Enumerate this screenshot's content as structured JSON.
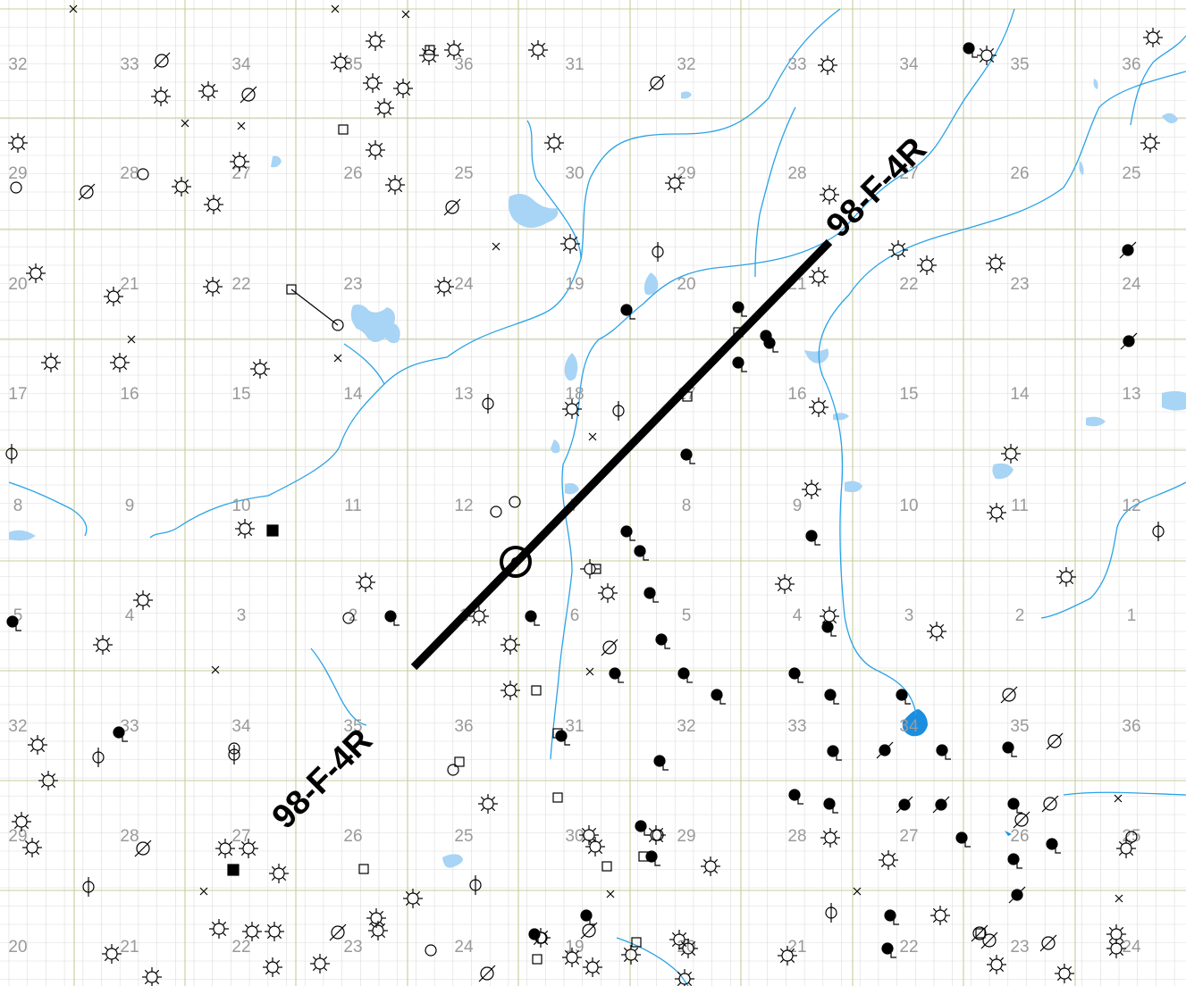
{
  "map": {
    "seismic_line_label": "98-F-4R",
    "section_labels": [
      "32",
      "33",
      "34",
      "35",
      "36",
      "31",
      "32",
      "33",
      "34",
      "35",
      "36",
      "29",
      "28",
      "27",
      "26",
      "25",
      "30",
      "29",
      "28",
      "27",
      "26",
      "25",
      "20",
      "21",
      "22",
      "23",
      "24",
      "19",
      "20",
      "21",
      "22",
      "23",
      "24",
      "17",
      "16",
      "15",
      "14",
      "13",
      "18",
      "17",
      "16",
      "15",
      "14",
      "13",
      "8",
      "9",
      "10",
      "11",
      "12",
      "7",
      "8",
      "9",
      "10",
      "11",
      "12",
      "5",
      "4",
      "3",
      "2",
      "1",
      "6",
      "5",
      "4",
      "3",
      "2",
      "1",
      "32",
      "33",
      "34",
      "35",
      "36",
      "31",
      "32",
      "33",
      "34",
      "35",
      "36",
      "29",
      "28",
      "27",
      "26",
      "25",
      "30",
      "29",
      "28",
      "27",
      "26",
      "25",
      "20",
      "21",
      "22",
      "23",
      "24",
      "19",
      "20",
      "21",
      "22",
      "23",
      "24"
    ],
    "colors": {
      "water": "#a8d4f5",
      "river": "#2aa3e6",
      "grid_major": "#c8cc9c",
      "grid_minor": "#dcdcdc",
      "line": "#000000"
    },
    "symbol_legend_names": [
      "oil-well",
      "gas-well",
      "dry-hole",
      "location",
      "abandoned-well",
      "suspended-well"
    ]
  }
}
